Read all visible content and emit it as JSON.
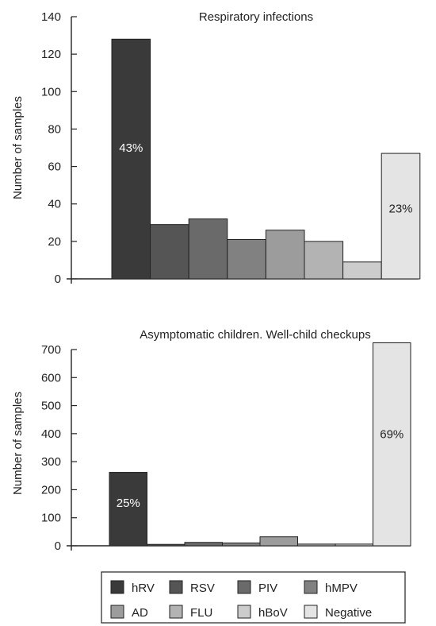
{
  "chart_data": [
    {
      "type": "bar",
      "title": "Respiratory infections",
      "xlabel": "",
      "ylabel": "Number of samples",
      "ylim": [
        0,
        140
      ],
      "yticks": [
        0,
        20,
        40,
        60,
        80,
        100,
        120,
        140
      ],
      "categories": [
        "hRV",
        "RSV",
        "PIV",
        "hMPV",
        "AD",
        "FLU",
        "hBoV",
        "Negative"
      ],
      "values": [
        128,
        29,
        32,
        21,
        26,
        20,
        9,
        67
      ],
      "data_labels": {
        "hRV": "43%",
        "Negative": "23%"
      },
      "grid": false
    },
    {
      "type": "bar",
      "title": "Asymptomatic children. Well-child checkups",
      "xlabel": "",
      "ylabel": "Number of samples",
      "ylim": [
        0,
        700
      ],
      "yticks": [
        0,
        100,
        200,
        300,
        400,
        500,
        600,
        700
      ],
      "categories": [
        "hRV",
        "RSV",
        "PIV",
        "hMPV",
        "AD",
        "FLU",
        "hBoV",
        "Negative"
      ],
      "values": [
        262,
        5,
        12,
        10,
        32,
        6,
        6,
        724
      ],
      "data_labels": {
        "hRV": "25%",
        "Negative": "69%"
      },
      "grid": false
    }
  ],
  "legend": {
    "placement": "bottom",
    "items": [
      {
        "label": "hRV",
        "color": "#3a3a3a"
      },
      {
        "label": "RSV",
        "color": "#555555"
      },
      {
        "label": "PIV",
        "color": "#6a6a6a"
      },
      {
        "label": "hMPV",
        "color": "#818181"
      },
      {
        "label": "AD",
        "color": "#9c9c9c"
      },
      {
        "label": "FLU",
        "color": "#b3b3b3"
      },
      {
        "label": "hBoV",
        "color": "#cccccc"
      },
      {
        "label": "Negative",
        "color": "#e4e4e4"
      }
    ]
  },
  "label_colors": {
    "dark": "#ffffff",
    "light": "#222222"
  }
}
